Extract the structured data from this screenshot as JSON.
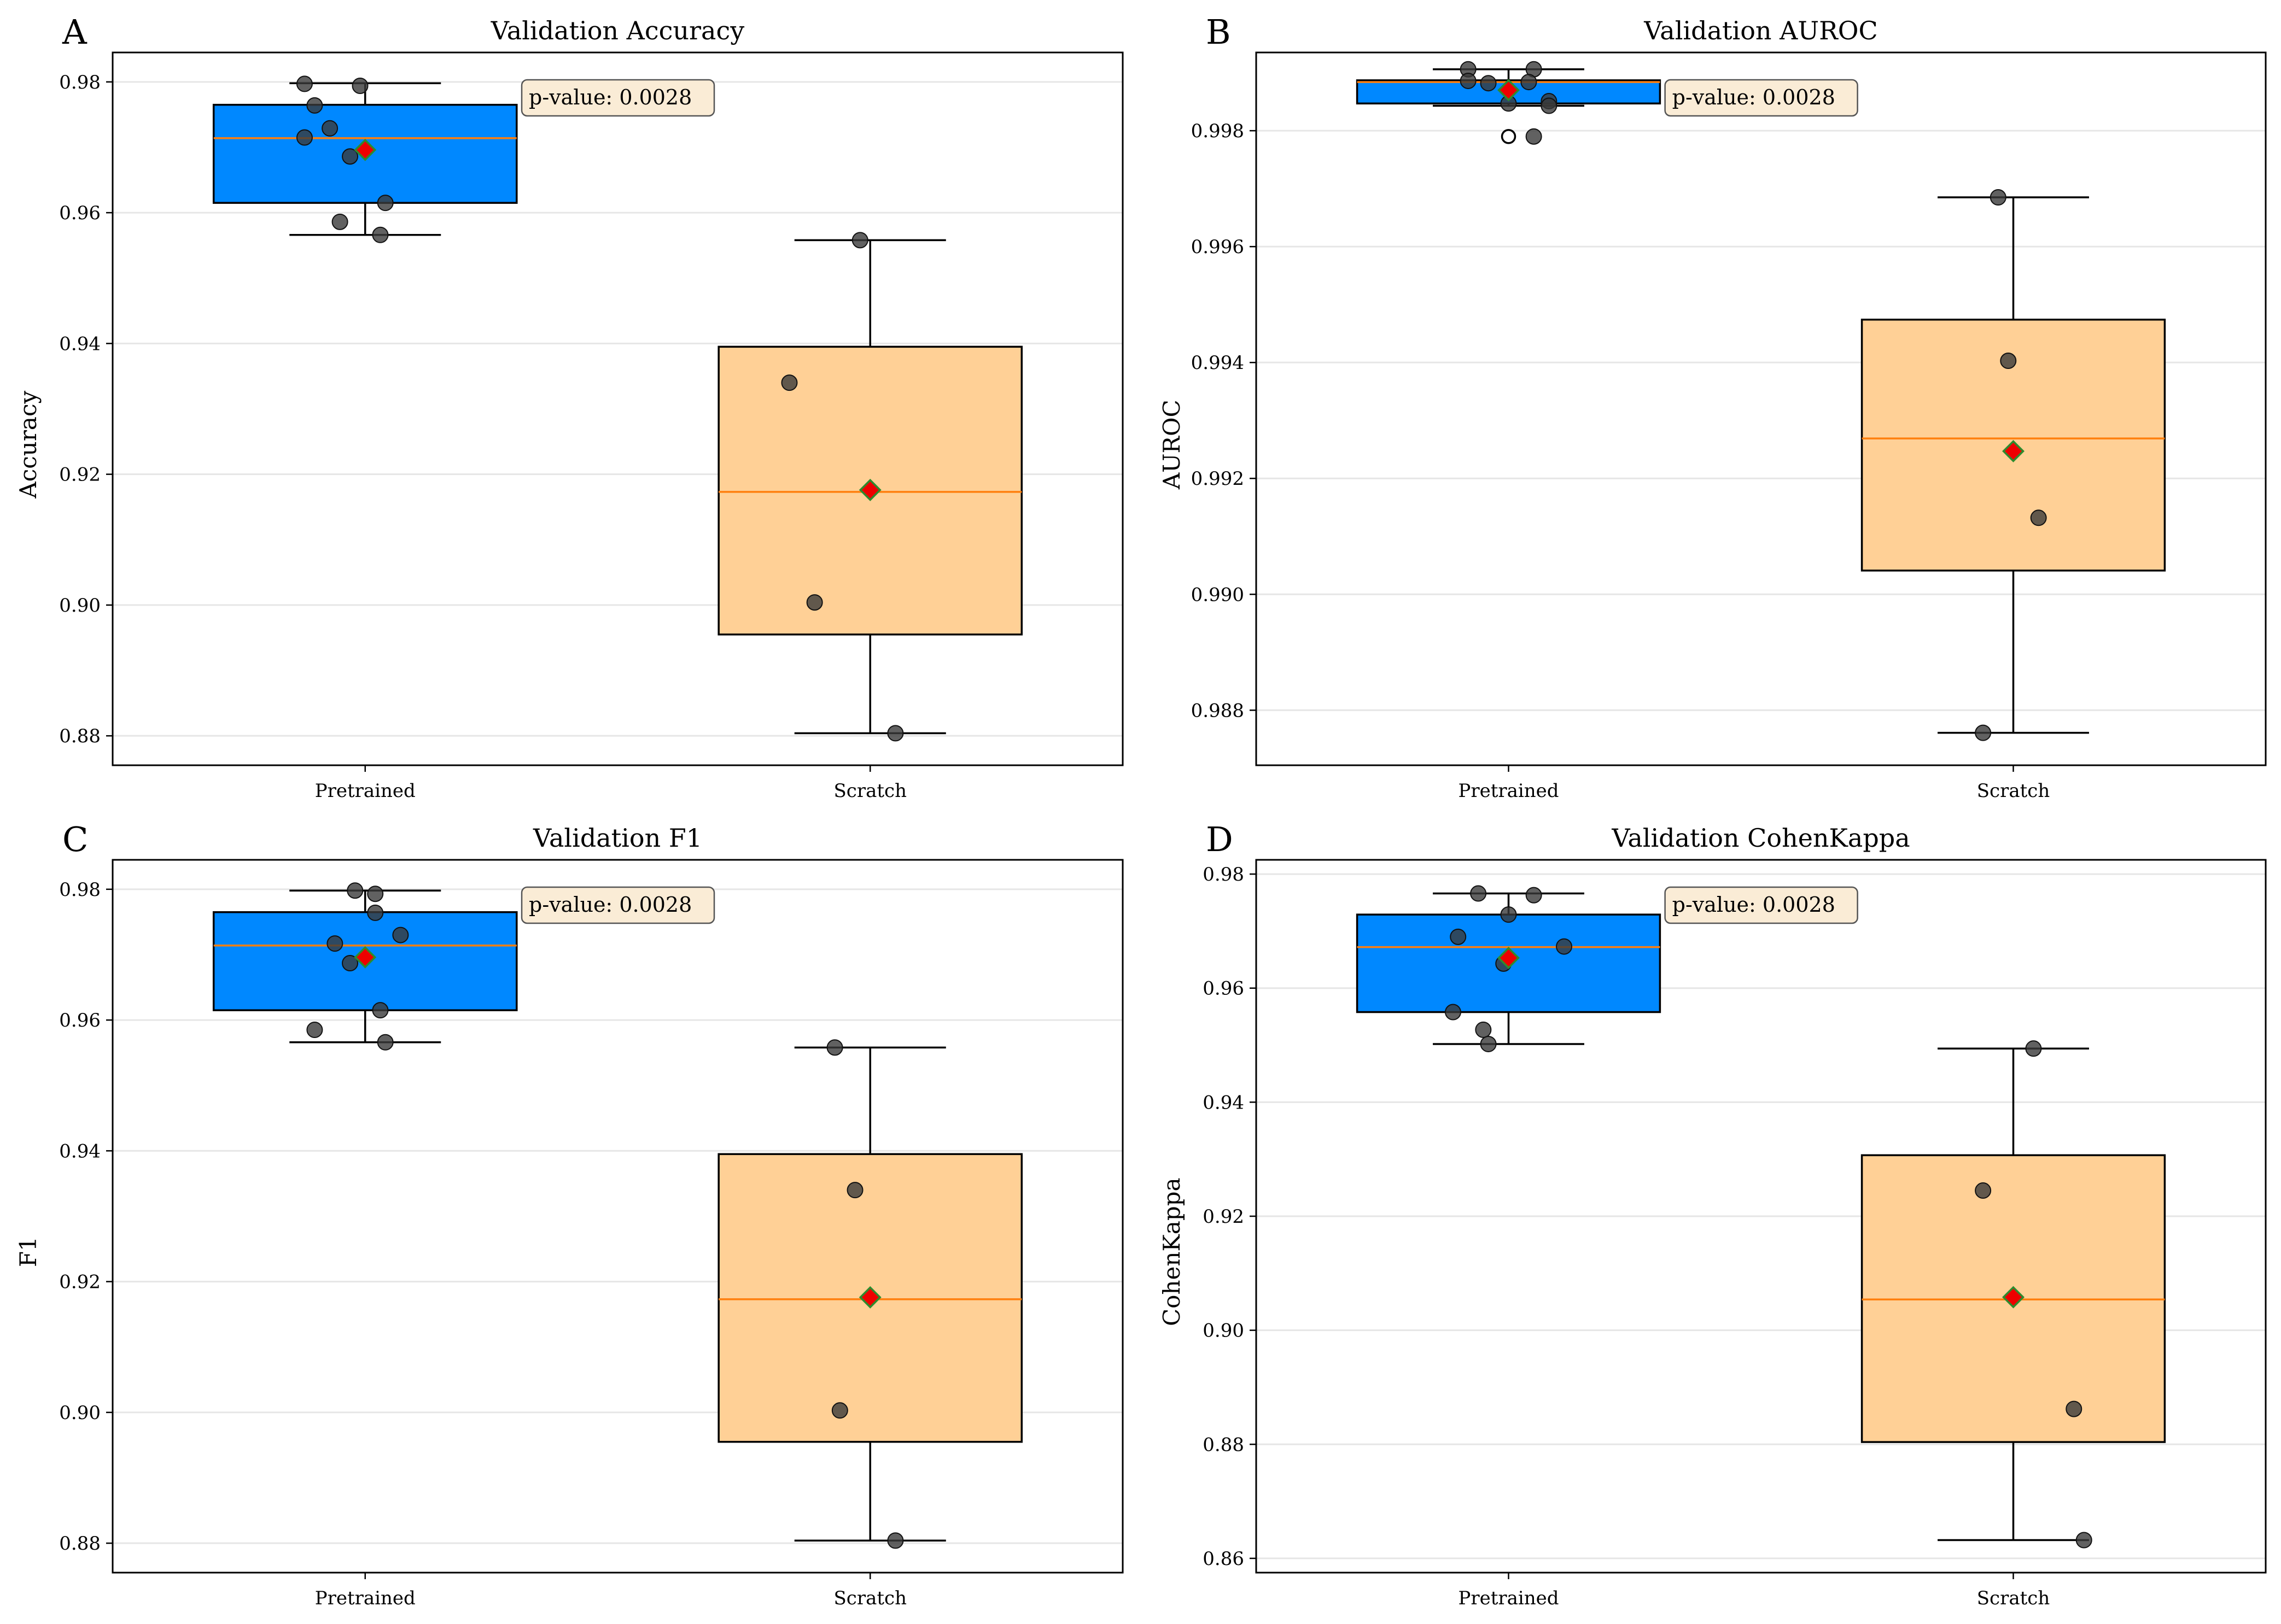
{
  "colors": {
    "pretrained_box": "#0088ff",
    "scratch_box": "#ffd096",
    "median": "#ff7f0e",
    "mean_fill": "#ee0000",
    "mean_edge": "#2e8b2e",
    "point": "#3a3a3a",
    "pvalue_bg": "#faecd6",
    "grid": "#e6e6e6"
  },
  "chart_data": [
    {
      "type": "box",
      "panel_letter": "A",
      "title": "Validation Accuracy",
      "xlabel": "",
      "ylabel": "Accuracy",
      "ylim": [
        0.8755,
        0.9845
      ],
      "yticks": [
        0.88,
        0.9,
        0.92,
        0.94,
        0.96,
        0.98
      ],
      "ytick_labels": [
        "0.88",
        "0.90",
        "0.92",
        "0.94",
        "0.96",
        "0.98"
      ],
      "grid": "y",
      "annotation": "p-value: 0.0028",
      "categories": [
        "Pretrained",
        "Scratch"
      ],
      "boxes": [
        {
          "q1": 0.9615,
          "median": 0.9714,
          "q3": 0.9765,
          "whisker_low": 0.9566,
          "whisker_high": 0.9798,
          "mean": 0.9696,
          "outliers": [],
          "points": [
            [
              -0.12,
              0.9797
            ],
            [
              -0.01,
              0.9794
            ],
            [
              -0.1,
              0.9764
            ],
            [
              -0.07,
              0.9729
            ],
            [
              -0.12,
              0.9715
            ],
            [
              -0.03,
              0.9686
            ],
            [
              0.04,
              0.9615
            ],
            [
              -0.05,
              0.9586
            ],
            [
              0.03,
              0.9566
            ]
          ]
        },
        {
          "q1": 0.8955,
          "median": 0.9173,
          "q3": 0.9395,
          "whisker_low": 0.8804,
          "whisker_high": 0.9558,
          "mean": 0.9176,
          "outliers": [],
          "points": [
            [
              -0.02,
              0.9558
            ],
            [
              -0.16,
              0.934
            ],
            [
              -0.11,
              0.9004
            ],
            [
              0.05,
              0.8804
            ]
          ]
        }
      ]
    },
    {
      "type": "box",
      "panel_letter": "B",
      "title": "Validation AUROC",
      "xlabel": "",
      "ylabel": "AUROC",
      "ylim": [
        0.98705,
        0.99935
      ],
      "yticks": [
        0.988,
        0.99,
        0.992,
        0.994,
        0.996,
        0.998
      ],
      "ytick_labels": [
        "0.988",
        "0.990",
        "0.992",
        "0.994",
        "0.996",
        "0.998"
      ],
      "grid": "y",
      "annotation": "p-value: 0.0028",
      "categories": [
        "Pretrained",
        "Scratch"
      ],
      "boxes": [
        {
          "q1": 0.99847,
          "median": 0.99884,
          "q3": 0.99887,
          "whisker_low": 0.99843,
          "whisker_high": 0.99906,
          "mean": 0.9987,
          "outliers": [
            0.9979
          ],
          "points": [
            [
              -0.08,
              0.99906
            ],
            [
              0.05,
              0.99906
            ],
            [
              -0.08,
              0.99886
            ],
            [
              -0.04,
              0.99882
            ],
            [
              0.04,
              0.99884
            ],
            [
              0.08,
              0.99851
            ],
            [
              0.0,
              0.99847
            ],
            [
              0.08,
              0.99843
            ],
            [
              0.05,
              0.9979
            ]
          ]
        },
        {
          "q1": 0.99041,
          "median": 0.99269,
          "q3": 0.99474,
          "whisker_low": 0.98761,
          "whisker_high": 0.99685,
          "mean": 0.99247,
          "outliers": [],
          "points": [
            [
              -0.03,
              0.99685
            ],
            [
              -0.01,
              0.99403
            ],
            [
              0.05,
              0.99132
            ],
            [
              -0.06,
              0.98761
            ]
          ]
        }
      ]
    },
    {
      "type": "box",
      "panel_letter": "C",
      "title": "Validation F1",
      "xlabel": "",
      "ylabel": "F1",
      "ylim": [
        0.8755,
        0.9845
      ],
      "yticks": [
        0.88,
        0.9,
        0.92,
        0.94,
        0.96,
        0.98
      ],
      "ytick_labels": [
        "0.88",
        "0.90",
        "0.92",
        "0.94",
        "0.96",
        "0.98"
      ],
      "grid": "y",
      "annotation": "p-value: 0.0028",
      "categories": [
        "Pretrained",
        "Scratch"
      ],
      "boxes": [
        {
          "q1": 0.9615,
          "median": 0.9714,
          "q3": 0.9765,
          "whisker_low": 0.9566,
          "whisker_high": 0.9798,
          "mean": 0.9696,
          "outliers": [],
          "points": [
            [
              -0.02,
              0.9798
            ],
            [
              0.02,
              0.9793
            ],
            [
              0.02,
              0.9764
            ],
            [
              0.07,
              0.973
            ],
            [
              -0.06,
              0.9717
            ],
            [
              -0.03,
              0.9687
            ],
            [
              0.03,
              0.9615
            ],
            [
              -0.1,
              0.9585
            ],
            [
              0.04,
              0.9566
            ]
          ]
        },
        {
          "q1": 0.8955,
          "median": 0.9173,
          "q3": 0.9395,
          "whisker_low": 0.8804,
          "whisker_high": 0.9558,
          "mean": 0.9176,
          "outliers": [],
          "points": [
            [
              -0.07,
              0.9558
            ],
            [
              -0.03,
              0.934
            ],
            [
              -0.06,
              0.9003
            ],
            [
              0.05,
              0.8804
            ]
          ]
        }
      ]
    },
    {
      "type": "box",
      "panel_letter": "D",
      "title": "Validation CohenKappa",
      "xlabel": "",
      "ylabel": "CohenKappa",
      "ylim": [
        0.8575,
        0.9825
      ],
      "yticks": [
        0.86,
        0.88,
        0.9,
        0.92,
        0.94,
        0.96,
        0.98
      ],
      "ytick_labels": [
        "0.86",
        "0.88",
        "0.90",
        "0.92",
        "0.94",
        "0.96",
        "0.98"
      ],
      "grid": "y",
      "annotation": "p-value: 0.0028",
      "categories": [
        "Pretrained",
        "Scratch"
      ],
      "boxes": [
        {
          "q1": 0.9558,
          "median": 0.9672,
          "q3": 0.9729,
          "whisker_low": 0.9502,
          "whisker_high": 0.9766,
          "mean": 0.9653,
          "outliers": [],
          "points": [
            [
              -0.06,
              0.9766
            ],
            [
              0.05,
              0.9763
            ],
            [
              0.0,
              0.9729
            ],
            [
              -0.1,
              0.969
            ],
            [
              0.11,
              0.9673
            ],
            [
              -0.01,
              0.9643
            ],
            [
              -0.11,
              0.9558
            ],
            [
              -0.05,
              0.9527
            ],
            [
              -0.04,
              0.9502
            ]
          ]
        },
        {
          "q1": 0.8804,
          "median": 0.9054,
          "q3": 0.9307,
          "whisker_low": 0.8632,
          "whisker_high": 0.9494,
          "mean": 0.9058,
          "outliers": [],
          "points": [
            [
              0.04,
              0.9494
            ],
            [
              -0.06,
              0.9245
            ],
            [
              0.12,
              0.8862
            ],
            [
              0.14,
              0.8632
            ]
          ]
        }
      ]
    }
  ]
}
